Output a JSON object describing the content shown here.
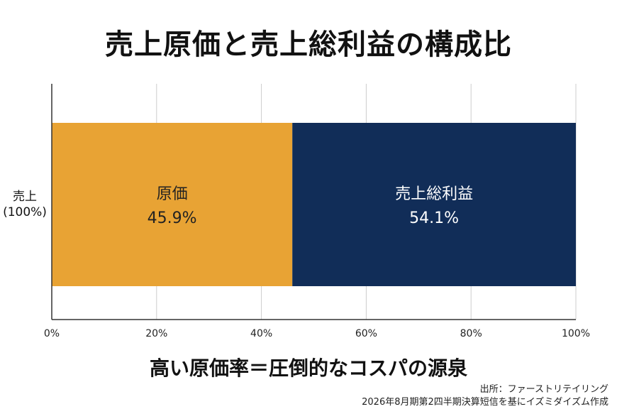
{
  "title": "売上原価と売上総利益の構成比",
  "subtitle": "高い原価率＝圧倒的なコスパの源泉",
  "source_line1": "出所：ファーストリテイリング",
  "source_line2": "2026年8月期第2四半期決算短信を基にイズミダイズム作成",
  "colors": {
    "cost": "#E8A334",
    "gross_profit": "#112D58",
    "grid": "#cccccc",
    "axis": "#333333"
  },
  "chart_data": {
    "type": "bar",
    "orientation": "horizontal",
    "stacked": true,
    "category_label": "売上",
    "category_sublabel": "(100%)",
    "categories": [
      "売上"
    ],
    "series": [
      {
        "name": "原価",
        "values": [
          45.9
        ],
        "value_label": "45.9%"
      },
      {
        "name": "売上総利益",
        "values": [
          54.1
        ],
        "value_label": "54.1%"
      }
    ],
    "xlim": [
      0,
      100
    ],
    "xticks": [
      "0%",
      "20%",
      "40%",
      "60%",
      "80%",
      "100%"
    ],
    "grid": true,
    "legend": "none"
  }
}
